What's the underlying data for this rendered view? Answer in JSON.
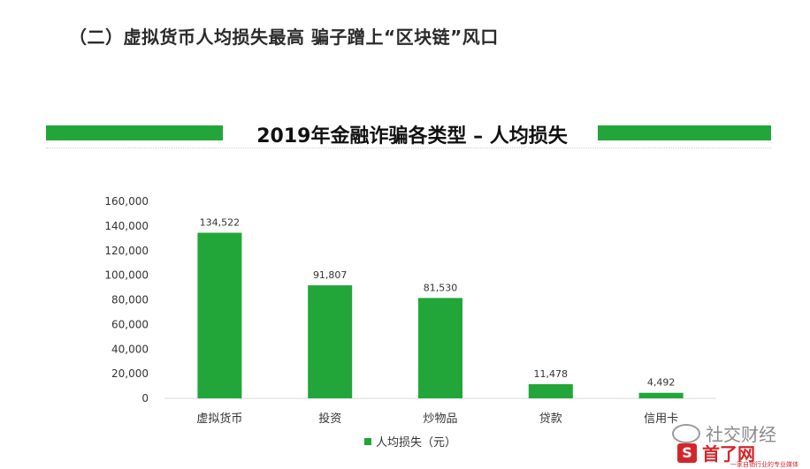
{
  "heading": "（二）虚拟货币人均损失最高 骗子蹭上“区块链”风口",
  "colors": {
    "bar": "#22a639",
    "watermark_red": "#d4262a"
  },
  "chart_data": {
    "type": "bar",
    "title": "2019年金融诈骗各类型 – 人均损失",
    "categories": [
      "虚拟货币",
      "投资",
      "炒物品",
      "贷款",
      "信用卡"
    ],
    "series": [
      {
        "name": "人均损失（元）",
        "values": [
          134522,
          91807,
          81530,
          11478,
          4492
        ]
      }
    ],
    "data_labels": [
      "134,522",
      "91,807",
      "81,530",
      "11,478",
      "4,492"
    ],
    "ylim": [
      0,
      160000
    ],
    "yticks": [
      0,
      20000,
      40000,
      60000,
      80000,
      100000,
      120000,
      140000,
      160000
    ],
    "ytick_labels": [
      "0",
      "20,000",
      "40,000",
      "60,000",
      "80,000",
      "100,000",
      "120,000",
      "140,000",
      "160,000"
    ],
    "grid": false,
    "legend": "bottom"
  },
  "watermark": {
    "line1": "社交财经",
    "logo_letter": "S",
    "line2": "首了网",
    "line3": "一家自销行业的专业媒体"
  }
}
